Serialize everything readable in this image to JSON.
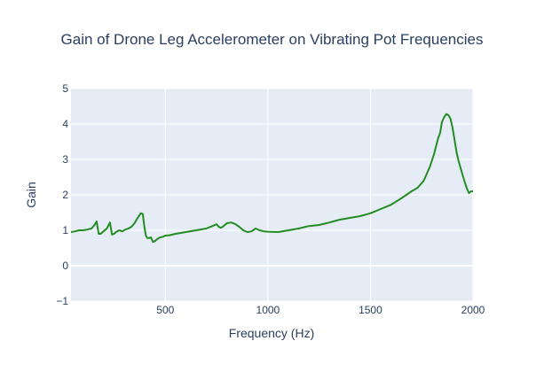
{
  "chart_data": {
    "type": "line",
    "title": "Gain of Drone Leg Accelerometer on Vibrating Pot Frequencies",
    "xlabel": "Frequency (Hz)",
    "ylabel": "Gain",
    "xlim": [
      40,
      2000
    ],
    "ylim": [
      -1,
      5
    ],
    "x_ticks": [
      500,
      1000,
      1500,
      2000
    ],
    "y_ticks": [
      -1,
      0,
      1,
      2,
      3,
      4,
      5
    ],
    "grid": true,
    "legend": "none",
    "colors": {
      "plot_bg": "#e5ecf6",
      "grid": "#ffffff",
      "line": "#228b22",
      "text": "#2a3f5f"
    },
    "series": [
      {
        "x": [
          40,
          60,
          80,
          100,
          120,
          140,
          155,
          165,
          175,
          185,
          200,
          215,
          230,
          240,
          250,
          260,
          275,
          290,
          305,
          320,
          335,
          350,
          365,
          380,
          390,
          398,
          405,
          412,
          420,
          430,
          440,
          450,
          460,
          475,
          490,
          500,
          520,
          550,
          600,
          650,
          700,
          730,
          750,
          760,
          770,
          780,
          800,
          820,
          840,
          860,
          880,
          900,
          920,
          940,
          960,
          980,
          1000,
          1050,
          1100,
          1150,
          1200,
          1250,
          1300,
          1350,
          1400,
          1450,
          1500,
          1550,
          1600,
          1650,
          1700,
          1730,
          1760,
          1790,
          1810,
          1830,
          1840,
          1848,
          1852,
          1860,
          1870,
          1880,
          1890,
          1900,
          1910,
          1920,
          1930,
          1940,
          1950,
          1960,
          1970,
          1980,
          1990,
          2000
        ],
        "y": [
          0.95,
          0.97,
          1.0,
          1.0,
          1.02,
          1.05,
          1.15,
          1.25,
          0.9,
          0.9,
          0.98,
          1.05,
          1.22,
          0.88,
          0.9,
          0.95,
          1.0,
          0.97,
          1.02,
          1.05,
          1.1,
          1.2,
          1.35,
          1.48,
          1.46,
          1.1,
          0.85,
          0.78,
          0.78,
          0.8,
          0.67,
          0.7,
          0.75,
          0.8,
          0.82,
          0.85,
          0.86,
          0.9,
          0.95,
          1.0,
          1.05,
          1.12,
          1.17,
          1.1,
          1.07,
          1.1,
          1.2,
          1.22,
          1.18,
          1.1,
          1.0,
          0.95,
          0.97,
          1.05,
          1.0,
          0.97,
          0.96,
          0.95,
          1.0,
          1.05,
          1.12,
          1.15,
          1.22,
          1.3,
          1.35,
          1.4,
          1.48,
          1.6,
          1.72,
          1.9,
          2.1,
          2.2,
          2.4,
          2.8,
          3.15,
          3.6,
          3.75,
          4.05,
          4.1,
          4.2,
          4.28,
          4.25,
          4.15,
          3.9,
          3.55,
          3.2,
          2.95,
          2.75,
          2.55,
          2.35,
          2.18,
          2.05,
          2.1,
          2.1
        ]
      }
    ]
  }
}
